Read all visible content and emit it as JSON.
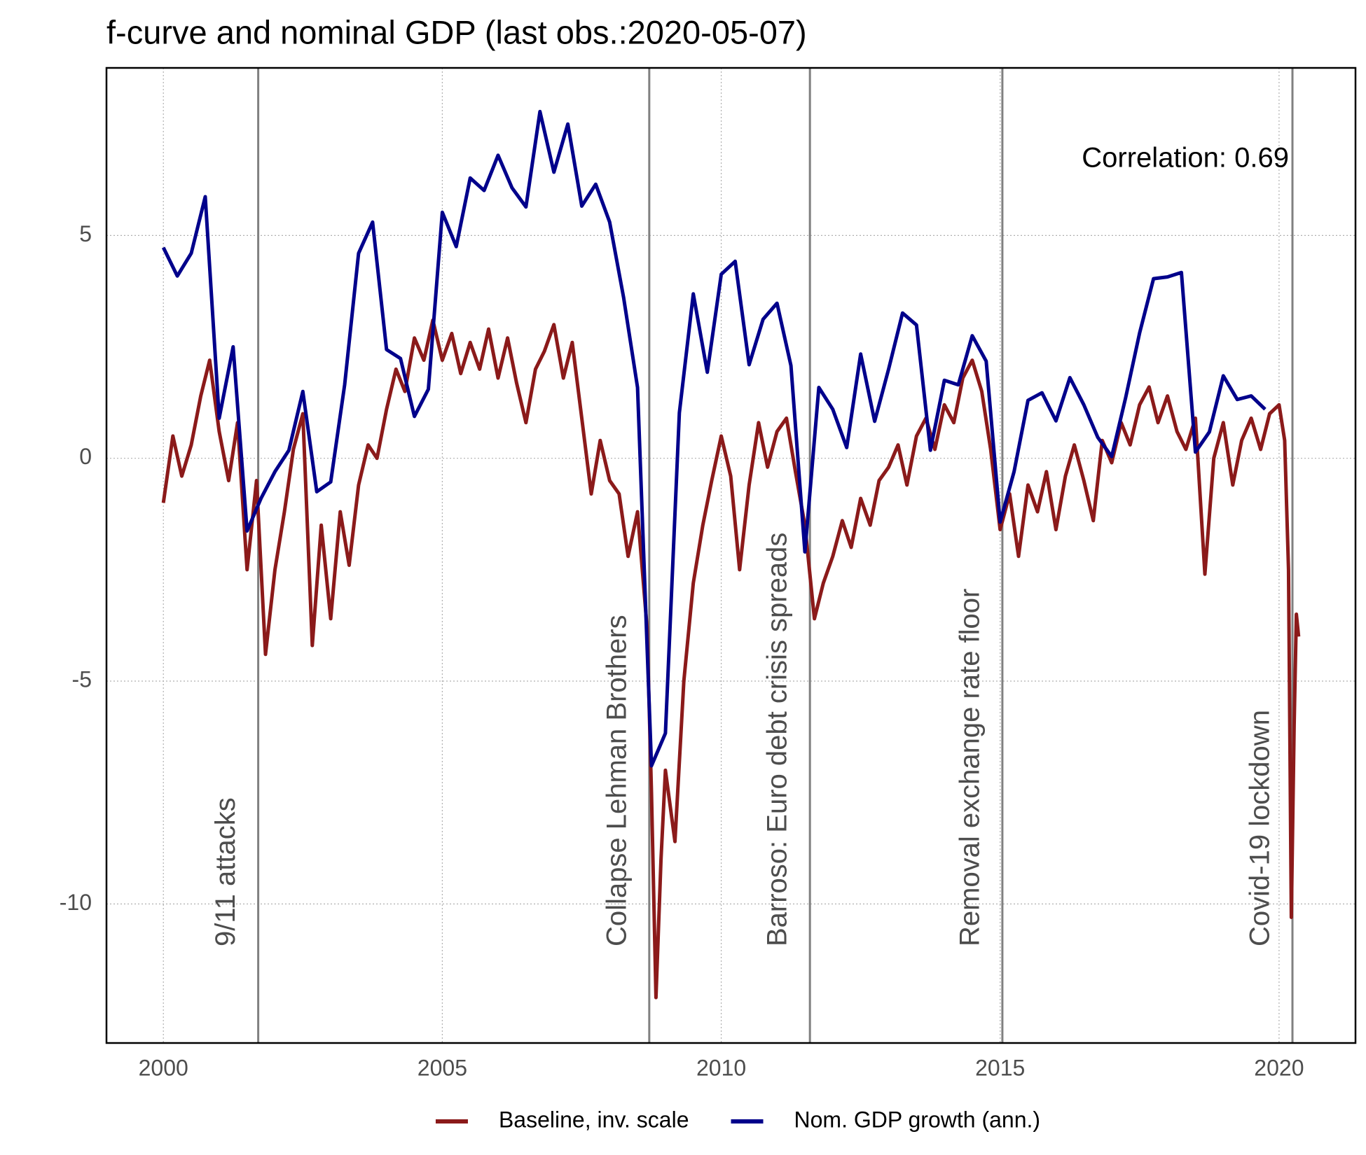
{
  "chart_data": {
    "type": "line",
    "title": "f-curve and nominal GDP (last obs.:2020-05-07)",
    "annotation": "Correlation: 0.69",
    "xlim": [
      1998.98,
      2021.37
    ],
    "xticks": [
      2000,
      2005,
      2010,
      2015,
      2020
    ],
    "ylim": [
      -13.12,
      8.76
    ],
    "yticks": [
      -10,
      -5,
      0,
      5
    ],
    "grid": true,
    "legend": "bottom",
    "events": [
      {
        "x": 2001.7,
        "label": "9/11 attacks"
      },
      {
        "x": 2008.71,
        "label": "Collapse Lehman Brothers"
      },
      {
        "x": 2011.59,
        "label": "Barroso: Euro debt crisis spreads"
      },
      {
        "x": 2015.04,
        "label": "Removal exchange rate floor"
      },
      {
        "x": 2020.24,
        "label": "Covid-19 lockdown"
      }
    ],
    "series": [
      {
        "name": "Baseline, inv. scale",
        "color": "#8b1a1a",
        "x": [
          2000.0,
          2000.17,
          2000.33,
          2000.5,
          2000.67,
          2000.83,
          2001.0,
          2001.17,
          2001.33,
          2001.5,
          2001.67,
          2001.83,
          2002.0,
          2002.17,
          2002.33,
          2002.5,
          2002.67,
          2002.83,
          2003.0,
          2003.17,
          2003.33,
          2003.5,
          2003.67,
          2003.83,
          2004.0,
          2004.17,
          2004.33,
          2004.5,
          2004.67,
          2004.83,
          2005.0,
          2005.17,
          2005.33,
          2005.5,
          2005.67,
          2005.83,
          2006.0,
          2006.17,
          2006.33,
          2006.5,
          2006.67,
          2006.83,
          2007.0,
          2007.17,
          2007.33,
          2007.5,
          2007.67,
          2007.83,
          2008.0,
          2008.17,
          2008.33,
          2008.5,
          2008.67,
          2008.75,
          2008.83,
          2008.92,
          2009.0,
          2009.17,
          2009.33,
          2009.5,
          2009.67,
          2009.83,
          2010.0,
          2010.17,
          2010.33,
          2010.5,
          2010.67,
          2010.83,
          2011.0,
          2011.17,
          2011.33,
          2011.5,
          2011.67,
          2011.83,
          2012.0,
          2012.17,
          2012.33,
          2012.5,
          2012.67,
          2012.83,
          2013.0,
          2013.17,
          2013.33,
          2013.5,
          2013.67,
          2013.83,
          2014.0,
          2014.17,
          2014.33,
          2014.5,
          2014.67,
          2014.83,
          2015.0,
          2015.17,
          2015.33,
          2015.5,
          2015.67,
          2015.83,
          2016.0,
          2016.17,
          2016.33,
          2016.5,
          2016.67,
          2016.83,
          2017.0,
          2017.17,
          2017.33,
          2017.5,
          2017.67,
          2017.83,
          2018.0,
          2018.17,
          2018.33,
          2018.5,
          2018.67,
          2018.83,
          2019.0,
          2019.17,
          2019.33,
          2019.5,
          2019.67,
          2019.83,
          2020.0,
          2020.1,
          2020.17,
          2020.22,
          2020.27,
          2020.31,
          2020.35
        ],
        "values": [
          -1.0,
          0.5,
          -0.4,
          0.3,
          1.4,
          2.2,
          0.6,
          -0.5,
          0.8,
          -2.5,
          -0.5,
          -4.4,
          -2.5,
          -1.2,
          0.2,
          1.0,
          -4.2,
          -1.5,
          -3.6,
          -1.2,
          -2.4,
          -0.6,
          0.3,
          0.0,
          1.1,
          2.0,
          1.5,
          2.7,
          2.2,
          3.1,
          2.2,
          2.8,
          1.9,
          2.6,
          2.0,
          2.9,
          1.8,
          2.7,
          1.7,
          0.8,
          2.0,
          2.4,
          3.0,
          1.8,
          2.6,
          0.9,
          -0.8,
          0.4,
          -0.5,
          -0.8,
          -2.2,
          -1.2,
          -3.8,
          -7.5,
          -12.1,
          -9.0,
          -7.0,
          -8.6,
          -5.0,
          -2.8,
          -1.5,
          -0.5,
          0.5,
          -0.4,
          -2.5,
          -0.6,
          0.8,
          -0.2,
          0.6,
          0.9,
          -0.3,
          -1.5,
          -3.6,
          -2.8,
          -2.2,
          -1.4,
          -2.0,
          -0.9,
          -1.5,
          -0.5,
          -0.2,
          0.3,
          -0.6,
          0.5,
          0.9,
          0.2,
          1.2,
          0.8,
          1.8,
          2.2,
          1.5,
          0.2,
          -1.6,
          -0.8,
          -2.2,
          -0.6,
          -1.2,
          -0.3,
          -1.6,
          -0.4,
          0.3,
          -0.5,
          -1.4,
          0.4,
          -0.1,
          0.8,
          0.3,
          1.2,
          1.6,
          0.8,
          1.4,
          0.6,
          0.2,
          0.9,
          -2.6,
          0.0,
          0.8,
          -0.6,
          0.4,
          0.9,
          0.2,
          1.0,
          1.2,
          0.4,
          -2.5,
          -10.3,
          -6.0,
          -3.5,
          -4.0
        ]
      },
      {
        "name": "Nom. GDP growth (ann.)",
        "color": "#00008b",
        "x": [
          2000.0,
          2000.25,
          2000.5,
          2000.75,
          2001.0,
          2001.25,
          2001.5,
          2001.75,
          2002.0,
          2002.25,
          2002.5,
          2002.75,
          2003.0,
          2003.25,
          2003.5,
          2003.75,
          2004.0,
          2004.25,
          2004.5,
          2004.75,
          2005.0,
          2005.25,
          2005.5,
          2005.75,
          2006.0,
          2006.25,
          2006.5,
          2006.75,
          2007.0,
          2007.25,
          2007.5,
          2007.75,
          2008.0,
          2008.25,
          2008.5,
          2008.75,
          2009.0,
          2009.25,
          2009.5,
          2009.75,
          2010.0,
          2010.25,
          2010.5,
          2010.75,
          2011.0,
          2011.25,
          2011.5,
          2011.75,
          2012.0,
          2012.25,
          2012.5,
          2012.75,
          2013.0,
          2013.25,
          2013.5,
          2013.75,
          2014.0,
          2014.25,
          2014.5,
          2014.75,
          2015.0,
          2015.25,
          2015.5,
          2015.75,
          2016.0,
          2016.25,
          2016.5,
          2016.75,
          2017.0,
          2017.25,
          2017.5,
          2017.75,
          2018.0,
          2018.25,
          2018.5,
          2018.75,
          2019.0,
          2019.25,
          2019.5,
          2019.75
        ],
        "values": [
          4.73,
          4.09,
          4.6,
          5.87,
          0.9,
          2.5,
          -1.63,
          -0.9,
          -0.3,
          0.18,
          1.5,
          -0.75,
          -0.53,
          1.65,
          4.6,
          5.3,
          2.44,
          2.24,
          0.94,
          1.55,
          5.52,
          4.75,
          6.29,
          6.01,
          6.8,
          6.07,
          5.64,
          7.78,
          6.42,
          7.5,
          5.66,
          6.15,
          5.3,
          3.61,
          1.59,
          -6.9,
          -6.17,
          1.02,
          3.69,
          1.93,
          4.13,
          4.42,
          2.1,
          3.12,
          3.48,
          2.08,
          -2.1,
          1.59,
          1.1,
          0.24,
          2.34,
          0.83,
          2.0,
          3.26,
          2.99,
          0.18,
          1.75,
          1.65,
          2.75,
          2.18,
          -1.43,
          -0.3,
          1.3,
          1.47,
          0.84,
          1.81,
          1.2,
          0.47,
          0.04,
          1.36,
          2.81,
          4.03,
          4.07,
          4.17,
          0.14,
          0.59,
          1.85,
          1.32,
          1.4,
          1.1
        ]
      }
    ]
  }
}
